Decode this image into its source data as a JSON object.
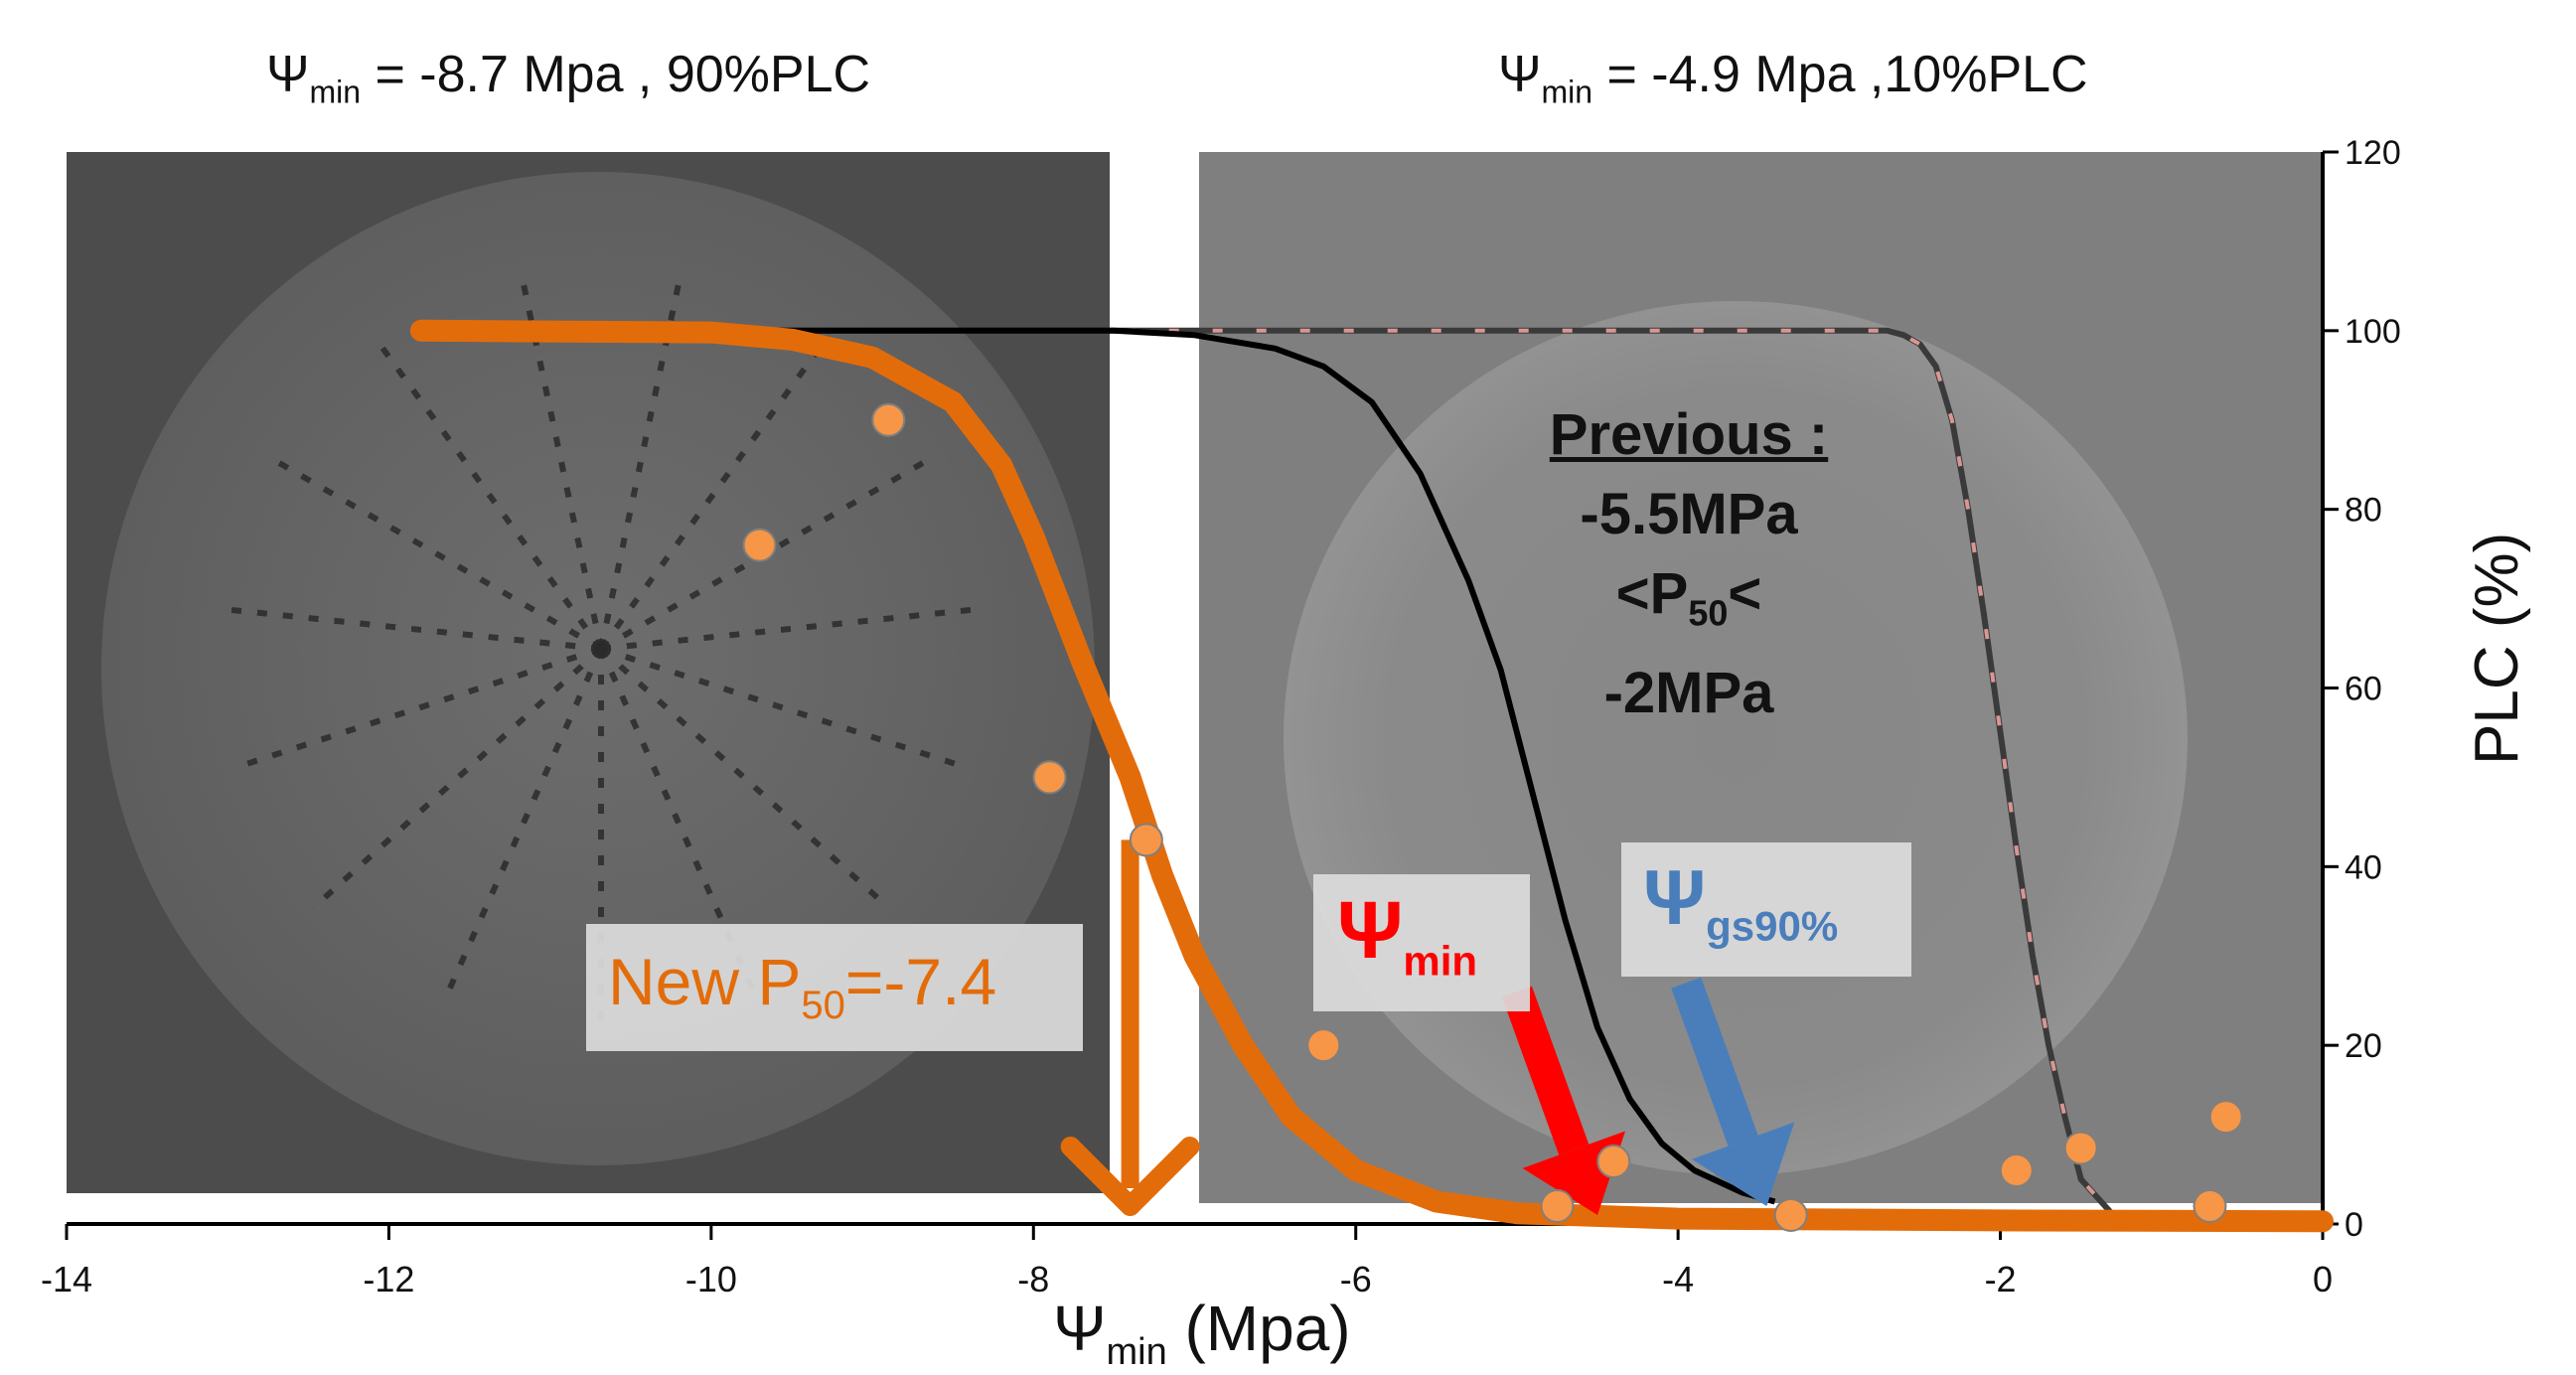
{
  "captions": {
    "left": {
      "symbol": "Ψ",
      "sub": "min",
      "rest": " = -8.7 Mpa , 90%PLC"
    },
    "right": {
      "symbol": "Ψ",
      "sub": "min",
      "rest": " = -4.9 Mpa ,10%PLC"
    }
  },
  "annotations": {
    "new_p50": {
      "prefix": "New P",
      "sub": "50",
      "suffix": "=-7.4"
    },
    "psi_min": {
      "symbol": "Ψ",
      "sub": "min"
    },
    "psi_gs90": {
      "symbol": "Ψ",
      "sub": "gs90%"
    },
    "previous": {
      "title": "Previous :",
      "line1": "-5.5MPa",
      "line2_prefix": "<P",
      "line2_sub": "50",
      "line2_suffix": "<",
      "line3": "-2MPa"
    }
  },
  "chart_data": {
    "type": "scatter",
    "xlabel": {
      "symbol": "Ψ",
      "sub": "min",
      "unit": " (Mpa)"
    },
    "ylabel": "PLC (%)",
    "xlim": [
      -14,
      0
    ],
    "ylim": [
      0,
      120
    ],
    "x_ticks": [
      -14,
      -12,
      -10,
      -8,
      -6,
      -4,
      -2,
      0
    ],
    "y_ticks": [
      0,
      20,
      40,
      60,
      80,
      100,
      120
    ],
    "y_axis_side": "right",
    "series": [
      {
        "type": "scatter",
        "color": "#f79646",
        "points": [
          [
            -8.9,
            90
          ],
          [
            -9.7,
            76
          ],
          [
            -7.9,
            50
          ],
          [
            -7.3,
            43
          ],
          [
            -6.2,
            20
          ],
          [
            -4.4,
            7
          ],
          [
            -4.75,
            2
          ],
          [
            -3.3,
            1
          ],
          [
            -1.9,
            6
          ],
          [
            -1.5,
            8.5
          ],
          [
            -0.6,
            12
          ],
          [
            -0.7,
            2
          ]
        ]
      },
      {
        "type": "line",
        "color": "#e36c0a",
        "curve": [
          [
            -11.8,
            100
          ],
          [
            -10,
            99.8
          ],
          [
            -9.5,
            99
          ],
          [
            -9,
            97
          ],
          [
            -8.5,
            92
          ],
          [
            -8.2,
            85
          ],
          [
            -8,
            77
          ],
          [
            -7.7,
            63
          ],
          [
            -7.4,
            50
          ],
          [
            -7.2,
            39
          ],
          [
            -7,
            30
          ],
          [
            -6.7,
            20
          ],
          [
            -6.4,
            12
          ],
          [
            -6,
            6
          ],
          [
            -5.5,
            2.5
          ],
          [
            -5,
            1.2
          ],
          [
            -4,
            0.6
          ],
          [
            -2,
            0.4
          ],
          [
            0,
            0.3
          ]
        ]
      },
      {
        "type": "line",
        "color": "#000000",
        "curve": [
          [
            -9.6,
            100
          ],
          [
            -7.5,
            100
          ],
          [
            -7,
            99.5
          ],
          [
            -6.5,
            98
          ],
          [
            -6.2,
            96
          ],
          [
            -5.9,
            92
          ],
          [
            -5.6,
            84
          ],
          [
            -5.3,
            72
          ],
          [
            -5.1,
            62
          ],
          [
            -4.9,
            48
          ],
          [
            -4.7,
            34
          ],
          [
            -4.5,
            22
          ],
          [
            -4.3,
            14
          ],
          [
            -4.1,
            9
          ],
          [
            -3.9,
            6
          ],
          [
            -3.6,
            3.5
          ],
          [
            -3.4,
            2.5
          ]
        ]
      },
      {
        "type": "line",
        "color": "#3a3a3a",
        "dash_color": "#d99694",
        "curve": [
          [
            -9.6,
            100
          ],
          [
            -3,
            100
          ],
          [
            -2.7,
            100
          ],
          [
            -2.6,
            99.5
          ],
          [
            -2.5,
            98.5
          ],
          [
            -2.4,
            96
          ],
          [
            -2.3,
            90
          ],
          [
            -2.2,
            80
          ],
          [
            -2.1,
            68
          ],
          [
            -2,
            55
          ],
          [
            -1.9,
            42
          ],
          [
            -1.8,
            30
          ],
          [
            -1.7,
            20
          ],
          [
            -1.6,
            12
          ],
          [
            -1.5,
            5
          ],
          [
            -1.3,
            1
          ],
          [
            -1.1,
            0.2
          ],
          [
            -0.8,
            0
          ],
          [
            0,
            0
          ]
        ]
      }
    ],
    "arrows": [
      {
        "color": "#e36c0a",
        "from": [
          -7.4,
          43
        ],
        "to": [
          -7.4,
          2
        ]
      },
      {
        "color": "#ff0000",
        "from": [
          -5.0,
          26
        ],
        "to": [
          -4.5,
          1
        ]
      },
      {
        "color": "#4a7ebb",
        "from": [
          -3.95,
          27
        ],
        "to": [
          -3.45,
          2
        ]
      }
    ]
  }
}
